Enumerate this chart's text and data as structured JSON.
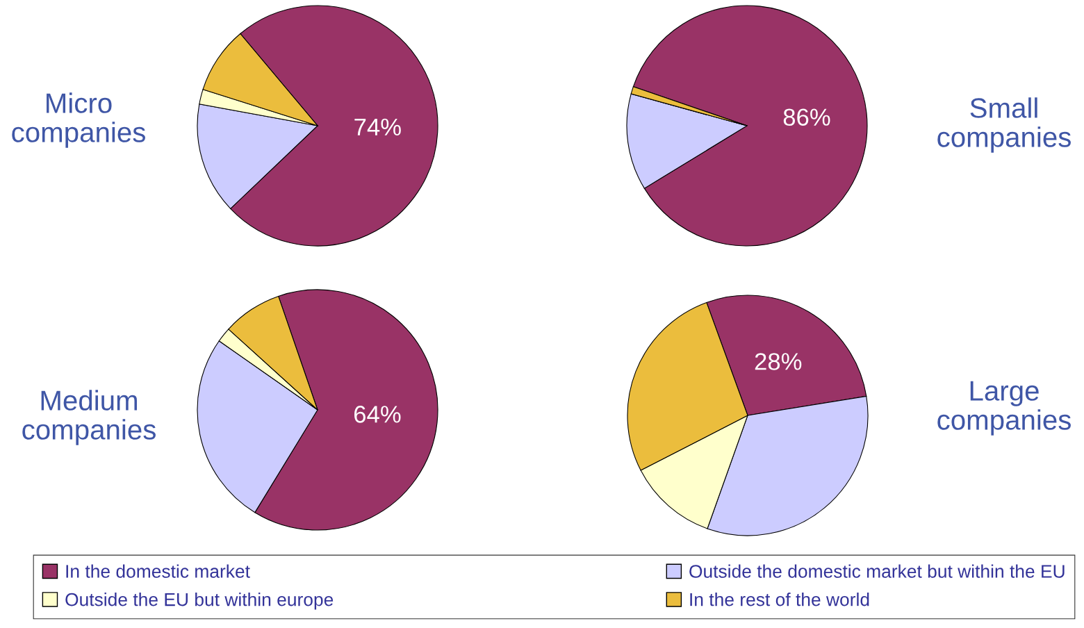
{
  "chart_data": [
    {
      "type": "pie",
      "title": "Micro companies",
      "categories": [
        "In the domestic market",
        "Outside the domestic market but within the EU",
        "Outside the EU but within europe",
        "In the rest of the world"
      ],
      "values": [
        74,
        15,
        2,
        9
      ],
      "colors": [
        "#993366",
        "#ccccff",
        "#ffffcc",
        "#ebbd3d"
      ],
      "value_labels": [
        "74%",
        null,
        null,
        null
      ],
      "legend": "bottom"
    },
    {
      "type": "pie",
      "title": "Small companies",
      "values": [
        86,
        13,
        0,
        1
      ],
      "colors": [
        "#993366",
        "#ccccff",
        "#ffffcc",
        "#ebbd3d"
      ],
      "value_labels": [
        "86%",
        null,
        null,
        null
      ]
    },
    {
      "type": "pie",
      "title": "Medium companies",
      "values": [
        64,
        26,
        2,
        8
      ],
      "colors": [
        "#993366",
        "#ccccff",
        "#ffffcc",
        "#ebbd3d"
      ],
      "value_labels": [
        "64%",
        null,
        null,
        null
      ]
    },
    {
      "type": "pie",
      "title": "Large companies",
      "values": [
        28,
        33,
        12,
        27
      ],
      "colors": [
        "#993366",
        "#ccccff",
        "#ffffcc",
        "#ebbd3d"
      ],
      "value_labels": [
        "28%",
        null,
        null,
        null
      ]
    }
  ]
}
